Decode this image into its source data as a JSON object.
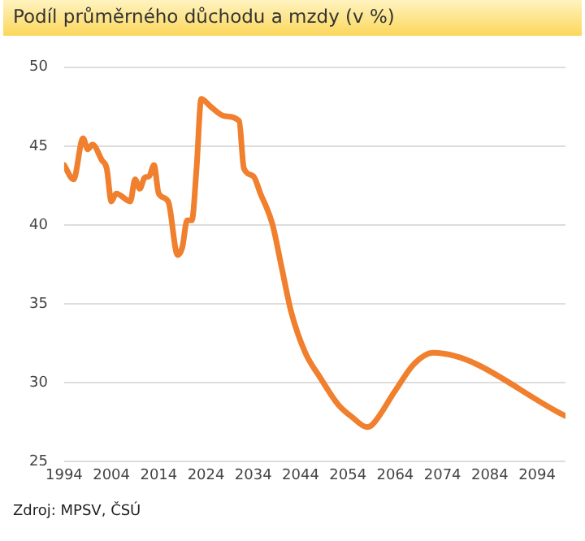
{
  "chart_data": {
    "type": "line",
    "title": "Podíl průměrného důchodu a mzdy (v %)",
    "annotations": [
      "Zdroj: MPSV, ČSÚ"
    ],
    "x": [
      1994,
      1996,
      1998,
      1999,
      2000,
      2002,
      2003,
      2004,
      2005,
      2008,
      2009,
      2010,
      2011,
      2012,
      2013,
      2014,
      2016,
      2018,
      2019,
      2020,
      2021,
      2022,
      2023,
      2025,
      2028,
      2031,
      2032,
      2034,
      2035.5,
      2038,
      2040,
      2042,
      2045,
      2048,
      2052,
      2055,
      2058,
      2059,
      2064,
      2068,
      2072,
      2100
    ],
    "series": [
      {
        "color": "#f07f2e",
        "values": [
          43.8,
          42.9,
          45.5,
          44.8,
          45.1,
          44.1,
          43.6,
          41.5,
          42.0,
          41.5,
          42.9,
          42.3,
          43.0,
          43.1,
          43.8,
          42.0,
          41.5,
          38.1,
          38.6,
          40.3,
          40.3,
          43.6,
          48.0,
          47.5,
          46.9,
          46.6,
          43.6,
          43.1,
          42.0,
          40.1,
          37.3,
          34.5,
          31.9,
          30.4,
          28.6,
          27.8,
          27.2,
          27.3,
          29.5,
          31.2,
          31.9,
          27.9
        ]
      }
    ],
    "xlim": [
      1994,
      2100
    ],
    "xticks": [
      1994,
      2004,
      2014,
      2024,
      2034,
      2044,
      2054,
      2064,
      2074,
      2084,
      2094
    ],
    "ylim": [
      25,
      50
    ],
    "yticks": [
      25,
      30,
      35,
      40,
      45,
      50
    ],
    "grid": "y",
    "legend": false,
    "marker": "none",
    "line_style": "solid"
  }
}
